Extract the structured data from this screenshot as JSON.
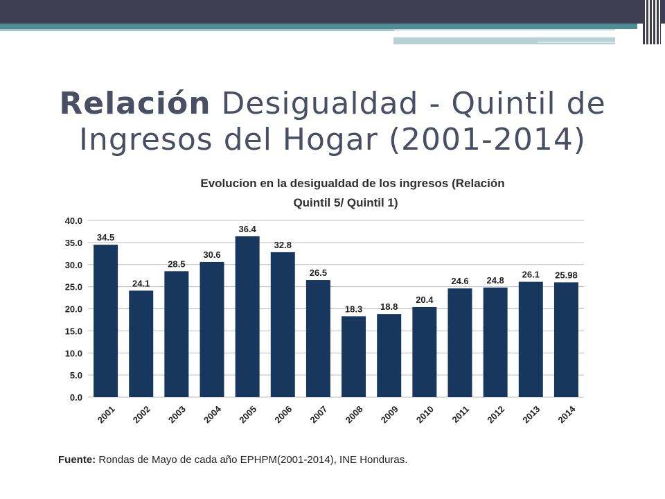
{
  "slide": {
    "title_bold": "Relación",
    "title_rest": " Desigualdad - Quintil de Ingresos del Hogar (2001-2014)"
  },
  "chart_data": {
    "type": "bar",
    "title": "Evolucion en la desigualdad de los ingresos (Relación Quintil 5/ Quintil 1)",
    "title_line1": "Evolucion en la desigualdad de los ingresos (Relación",
    "title_line2": "Quintil 5/ Quintil 1)",
    "categories": [
      "2001",
      "2002",
      "2003",
      "2004",
      "2005",
      "2006",
      "2007",
      "2008",
      "2009",
      "2010",
      "2011",
      "2012",
      "2013",
      "2014"
    ],
    "values": [
      34.5,
      24.1,
      28.5,
      30.6,
      36.4,
      32.8,
      26.5,
      18.3,
      18.8,
      20.4,
      24.6,
      24.8,
      26.1,
      25.98
    ],
    "value_labels": [
      "34.5",
      "24.1",
      "28.5",
      "30.6",
      "36.4",
      "32.8",
      "26.5",
      "18.3",
      "18.8",
      "20.4",
      "24.6",
      "24.8",
      "26.1",
      "25.98"
    ],
    "ylim": [
      0,
      40
    ],
    "yticks": [
      "0.0",
      "5.0",
      "10.0",
      "15.0",
      "20.0",
      "25.0",
      "30.0",
      "35.0",
      "40.0"
    ],
    "xlabel": "",
    "ylabel": "",
    "grid": true,
    "bar_color": "#17375e"
  },
  "source": {
    "label": "Fuente:",
    "text": " Rondas de Mayo de cada año EPHPM(2001-2014), INE Honduras."
  }
}
